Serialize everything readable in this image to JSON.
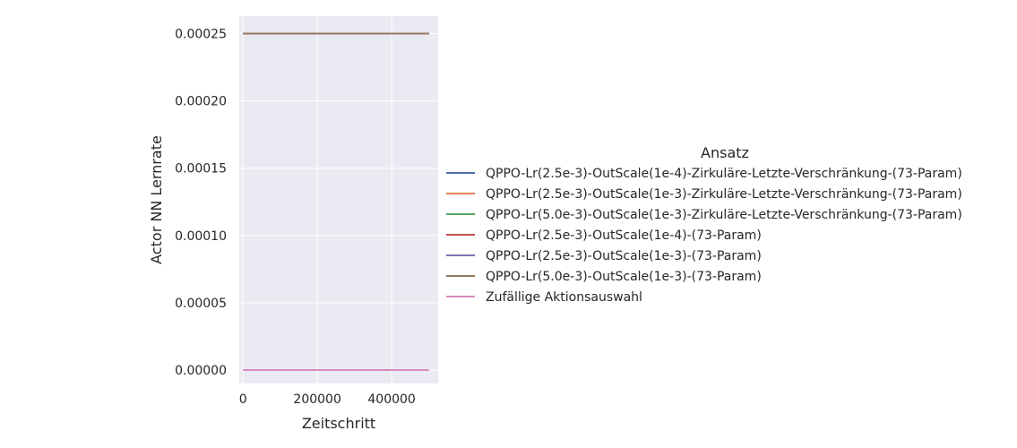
{
  "chart_data": {
    "type": "line",
    "xlabel": "Zeitschritt",
    "ylabel": "Actor NN Lernrate",
    "xlim": [
      -10000,
      525000
    ],
    "ylim": [
      -1e-05,
      0.000263
    ],
    "x_ticks": [
      0,
      200000,
      400000
    ],
    "x_tick_labels": [
      "0",
      "200000",
      "400000"
    ],
    "y_ticks": [
      0,
      5e-05,
      0.0001,
      0.00015,
      0.0002,
      0.00025
    ],
    "y_tick_labels": [
      "0.00000",
      "0.00005",
      "0.00010",
      "0.00015",
      "0.00020",
      "0.00025"
    ],
    "grid": true,
    "legend_title": "Ansatz",
    "legend_position": "right",
    "series": [
      {
        "name": "QPPO-Lr(2.5e-3)-OutScale(1e-4)-Zirkuläre-Letzte-Verschränkung-(73-Param)",
        "color": "#4c72b0",
        "x": [
          0,
          500000
        ],
        "y": [
          0.00025,
          0.00025
        ]
      },
      {
        "name": "QPPO-Lr(2.5e-3)-OutScale(1e-3)-Zirkuläre-Letzte-Verschränkung-(73-Param)",
        "color": "#dd8452",
        "x": [
          0,
          500000
        ],
        "y": [
          0.00025,
          0.00025
        ]
      },
      {
        "name": "QPPO-Lr(5.0e-3)-OutScale(1e-3)-Zirkuläre-Letzte-Verschränkung-(73-Param)",
        "color": "#55a868",
        "x": [
          0,
          500000
        ],
        "y": [
          0.00025,
          0.00025
        ]
      },
      {
        "name": "QPPO-Lr(2.5e-3)-OutScale(1e-4)-(73-Param)",
        "color": "#c44e52",
        "x": [
          0,
          500000
        ],
        "y": [
          0.00025,
          0.00025
        ]
      },
      {
        "name": "QPPO-Lr(2.5e-3)-OutScale(1e-3)-(73-Param)",
        "color": "#8172b3",
        "x": [
          0,
          500000
        ],
        "y": [
          0.00025,
          0.00025
        ]
      },
      {
        "name": "QPPO-Lr(5.0e-3)-OutScale(1e-3)-(73-Param)",
        "color": "#937860",
        "x": [
          0,
          500000
        ],
        "y": [
          0.00025,
          0.00025
        ]
      },
      {
        "name": "Zufällige Aktionsauswahl",
        "color": "#da8bc3",
        "x": [
          0,
          500000
        ],
        "y": [
          0,
          0
        ]
      }
    ],
    "colors": {
      "plot_background": "#eaeaf2",
      "grid": "#ffffff"
    }
  }
}
